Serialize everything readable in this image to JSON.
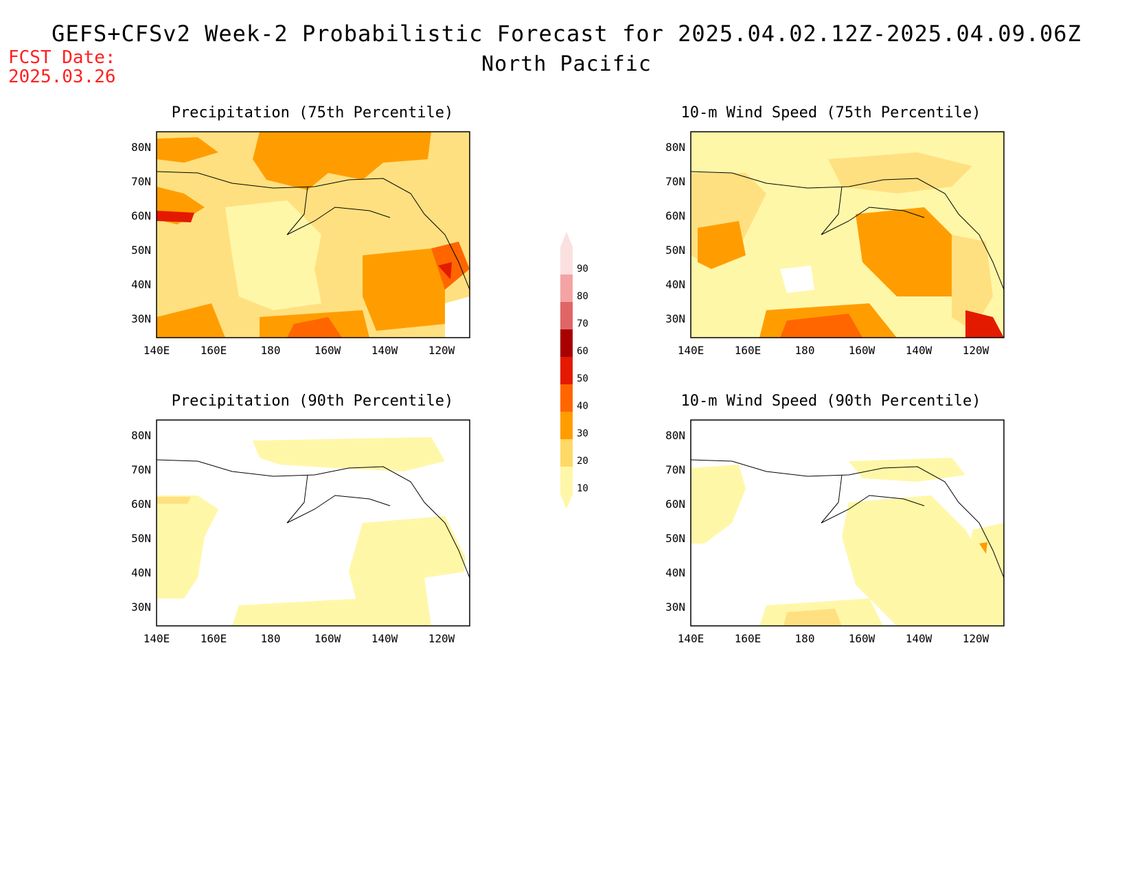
{
  "header": {
    "title": "GEFS+CFSv2 Week-2 Probabilistic Forecast for 2025.04.02.12Z-2025.04.09.06Z",
    "region": "North Pacific",
    "fcst_label": "FCST Date:",
    "fcst_date": "2025.03.26"
  },
  "panels": [
    {
      "title": "Precipitation (75th Percentile)",
      "x_ticks": [
        "140E",
        "160E",
        "180",
        "160W",
        "140W",
        "120W"
      ],
      "y_ticks": [
        "80N",
        "70N",
        "60N",
        "50N",
        "40N",
        "30N"
      ]
    },
    {
      "title": "10-m Wind Speed (75th Percentile)",
      "x_ticks": [
        "140E",
        "160E",
        "180",
        "160W",
        "140W",
        "120W"
      ],
      "y_ticks": [
        "80N",
        "70N",
        "60N",
        "50N",
        "40N",
        "30N"
      ]
    },
    {
      "title": "Precipitation (90th Percentile)",
      "x_ticks": [
        "140E",
        "160E",
        "180",
        "160W",
        "140W",
        "120W"
      ],
      "y_ticks": [
        "80N",
        "70N",
        "60N",
        "50N",
        "40N",
        "30N"
      ]
    },
    {
      "title": "10-m Wind Speed (90th Percentile)",
      "x_ticks": [
        "140E",
        "160E",
        "180",
        "160W",
        "140W",
        "120W"
      ],
      "y_ticks": [
        "80N",
        "70N",
        "60N",
        "50N",
        "40N",
        "30N"
      ]
    }
  ],
  "legend": {
    "levels": [
      "90",
      "80",
      "70",
      "60",
      "50",
      "40",
      "30",
      "20",
      "10"
    ],
    "colors": [
      "#fbe0e0",
      "#f4a3a3",
      "#e06666",
      "#a80000",
      "#e31a00",
      "#ff6600",
      "#ff9d00",
      "#ffd965",
      "#fff7a8"
    ]
  },
  "palette": {
    "c10": "#fff7a8",
    "c20": "#ffe080",
    "c30": "#ff9d00",
    "c40": "#ff6600",
    "c50": "#e31a00",
    "fcst_text": "#ff2020"
  }
}
